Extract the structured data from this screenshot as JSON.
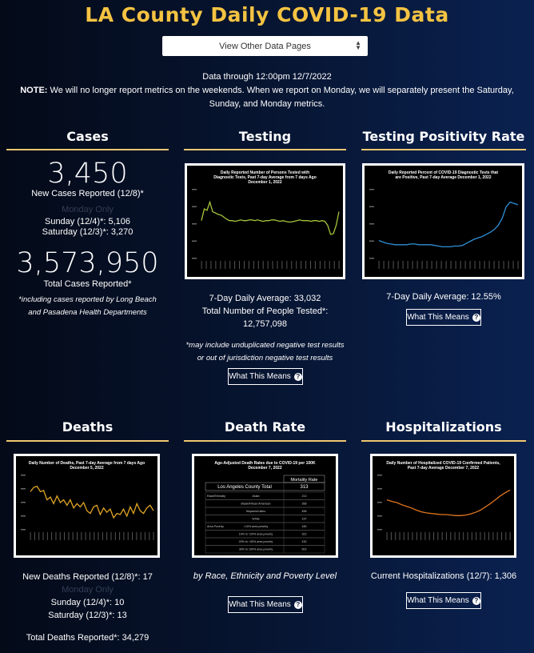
{
  "page": {
    "title": "LA County Daily COVID-19 Data",
    "selector": "View Other Data Pages",
    "data_through": "Data through 12:00pm 12/7/2022",
    "note_label": "NOTE:",
    "note_text": " We will no longer report metrics on the weekends. When we report on Monday, we will separately present the Saturday, Sunday, and Monday metrics."
  },
  "cases": {
    "header": "Cases",
    "new_value": "3,450",
    "new_label": "New Cases Reported (12/8)*",
    "monday_only": "Monday Only",
    "sunday": "Sunday (12/4)*: 5,106",
    "saturday": "Saturday (12/3)*: 3,270",
    "total_value": "3,573,950",
    "total_label": "Total Cases Reported*",
    "footnote": "*including cases reported by Long Beach and Pasadena Health Departments"
  },
  "testing": {
    "header": "Testing",
    "chart_title": "Daily Reported Number of Persons Tested with Diagnostic Tests, Past 7-day Average from 7 days Ago December 1, 2022",
    "avg": "7-Day Daily Average: 33,032",
    "total_label": "Total Number of People Tested*:",
    "total_value": "12,757,098",
    "footnote": "*may include unduplicated negative test results or out of jurisdiction negative test results",
    "button": "What This Means"
  },
  "positivity": {
    "header": "Testing Positivity Rate",
    "chart_title": "Daily Reported Percent of COVID-19 Diagnostic Tests that are Positive, Past 7-day Average December 1, 2022",
    "avg": "7-Day Daily Average: 12.55%",
    "button": "What This Means"
  },
  "deaths": {
    "header": "Deaths",
    "chart_title": "Daily Number of Deaths, Past 7-day Average from 7 days Ago December 5, 2022",
    "new_label": "New Deaths Reported (12/8)*: 17",
    "monday_only": "Monday Only",
    "sunday": "Sunday (12/4)*: 10",
    "saturday": "Saturday (12/3)*: 13",
    "total": "Total Deaths Reported*: 34,279"
  },
  "deathrate": {
    "header": "Death Rate",
    "chart_title": "Age-Adjusted Death Rates due to COVID-19 per 100K December 7, 2022",
    "col_header": "Mortality Rate",
    "total_row": "Los Angeles County Total",
    "total_value": "313",
    "rows": [
      {
        "group": "Race/Ethnicity",
        "label": "Asian",
        "value": "213"
      },
      {
        "group": "",
        "label": "Black/African American",
        "value": "358"
      },
      {
        "group": "",
        "label": "Hispanic/Latino",
        "value": "456"
      },
      {
        "group": "",
        "label": "White",
        "value": "197"
      },
      {
        "group": "Area Poverty",
        "label": "<10% area poverty",
        "value": "180"
      },
      {
        "group": "",
        "label": "10% to <20% area poverty",
        "value": "322"
      },
      {
        "group": "",
        "label": "20% to <30% area poverty",
        "value": "430"
      },
      {
        "group": "",
        "label": "30% to 100% area poverty",
        "value": "502"
      }
    ],
    "caption": "by Race, Ethnicity and Poverty Level",
    "button": "What This Means"
  },
  "hosp": {
    "header": "Hospitalizations",
    "chart_title": "Daily Number of Hospitalized COVID-19 Confirmed Patients, Past 7-day Average December 7, 2022",
    "current": "Current Hospitalizations (12/7): 1,306",
    "button": "What This Means"
  },
  "colors": {
    "title": "#f5c342",
    "rule": "#f0c770",
    "testing_line": "#a5c43a",
    "positivity_line": "#2e8fd6",
    "deaths_line": "#e0a526",
    "hosp_line": "#e2761f"
  },
  "charts": {
    "testing": [
      0.55,
      0.72,
      0.7,
      0.82,
      0.68,
      0.66,
      0.64,
      0.63,
      0.6,
      0.57,
      0.55,
      0.55,
      0.54,
      0.55,
      0.56,
      0.55,
      0.55,
      0.56,
      0.56,
      0.55,
      0.56,
      0.55,
      0.54,
      0.55,
      0.55,
      0.56,
      0.56,
      0.55,
      0.54,
      0.55,
      0.54,
      0.53,
      0.53,
      0.54,
      0.55,
      0.56,
      0.55,
      0.55,
      0.55,
      0.54,
      0.55,
      0.55,
      0.54,
      0.55,
      0.54,
      0.48,
      0.35,
      0.36,
      0.48,
      0.68
    ],
    "positivity": [
      0.26,
      0.24,
      0.22,
      0.21,
      0.2,
      0.2,
      0.2,
      0.2,
      0.21,
      0.21,
      0.2,
      0.2,
      0.2,
      0.2,
      0.19,
      0.18,
      0.17,
      0.17,
      0.17,
      0.18,
      0.18,
      0.19,
      0.22,
      0.25,
      0.28,
      0.3,
      0.32,
      0.35,
      0.38,
      0.42,
      0.48,
      0.58,
      0.75,
      0.82,
      0.8,
      0.78
    ],
    "deaths": [
      0.7,
      0.78,
      0.8,
      0.7,
      0.72,
      0.55,
      0.6,
      0.48,
      0.62,
      0.5,
      0.55,
      0.45,
      0.55,
      0.4,
      0.48,
      0.42,
      0.5,
      0.35,
      0.3,
      0.42,
      0.45,
      0.28,
      0.4,
      0.32,
      0.38,
      0.22,
      0.3,
      0.28,
      0.38,
      0.25,
      0.42,
      0.3,
      0.48,
      0.35,
      0.3,
      0.4,
      0.45,
      0.35
    ],
    "hosp": [
      0.55,
      0.52,
      0.5,
      0.46,
      0.43,
      0.4,
      0.36,
      0.33,
      0.31,
      0.3,
      0.29,
      0.28,
      0.28,
      0.27,
      0.26,
      0.26,
      0.27,
      0.29,
      0.32,
      0.36,
      0.42,
      0.48,
      0.55,
      0.62,
      0.68,
      0.73
    ]
  }
}
